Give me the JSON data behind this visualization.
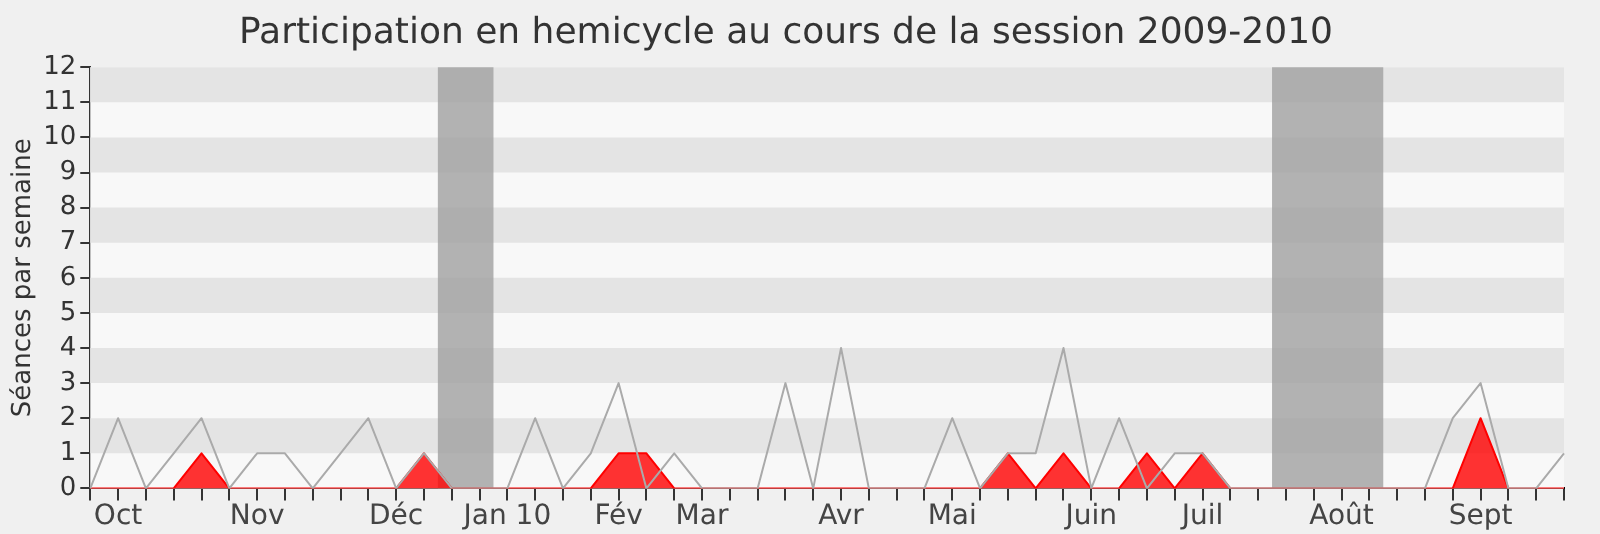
{
  "chart_data": {
    "type": "line",
    "title": "Participation en hemicycle au cours de la session 2009-2010",
    "ylabel": "Séances par semaine",
    "categories": [
      null,
      "Oct",
      null,
      null,
      null,
      null,
      "Nov",
      null,
      null,
      null,
      null,
      "Déc",
      null,
      null,
      null,
      "Jan 10",
      null,
      null,
      null,
      "Fév",
      null,
      null,
      "Mar",
      null,
      null,
      null,
      null,
      "Avr",
      null,
      null,
      null,
      "Mai",
      null,
      null,
      null,
      null,
      "Juin",
      null,
      null,
      null,
      "Juil",
      null,
      null,
      null,
      null,
      "Août",
      null,
      null,
      null,
      null,
      "Sept",
      null,
      null,
      null
    ],
    "series": [
      {
        "type": "line",
        "color": "#aaaaaa",
        "values": [
          0,
          2,
          0,
          1,
          2,
          0,
          1,
          1,
          0,
          1,
          2,
          0,
          1,
          0,
          0,
          0,
          2,
          0,
          1,
          3,
          0,
          1,
          0,
          0,
          0,
          3,
          0,
          4,
          0,
          0,
          0,
          2,
          0,
          1,
          1,
          4,
          0,
          2,
          0,
          1,
          1,
          0,
          0,
          0,
          0,
          0,
          0,
          0,
          0,
          2,
          3,
          0,
          0,
          1
        ]
      },
      {
        "type": "area",
        "color": "#ff0000",
        "values": [
          0,
          0,
          0,
          0,
          1,
          0,
          0,
          0,
          0,
          0,
          0,
          0,
          1,
          0,
          0,
          0,
          0,
          0,
          0,
          1,
          1,
          0,
          0,
          0,
          0,
          0,
          0,
          0,
          0,
          0,
          0,
          0,
          0,
          1,
          0,
          1,
          0,
          0,
          1,
          0,
          1,
          0,
          0,
          0,
          0,
          0,
          0,
          0,
          0,
          0,
          2,
          0,
          0,
          0
        ]
      }
    ],
    "ylim": [
      0,
      12
    ],
    "yticks": [
      0,
      1,
      2,
      3,
      4,
      5,
      6,
      7,
      8,
      9,
      10,
      11,
      12
    ],
    "marker": "none",
    "legend": false
  }
}
